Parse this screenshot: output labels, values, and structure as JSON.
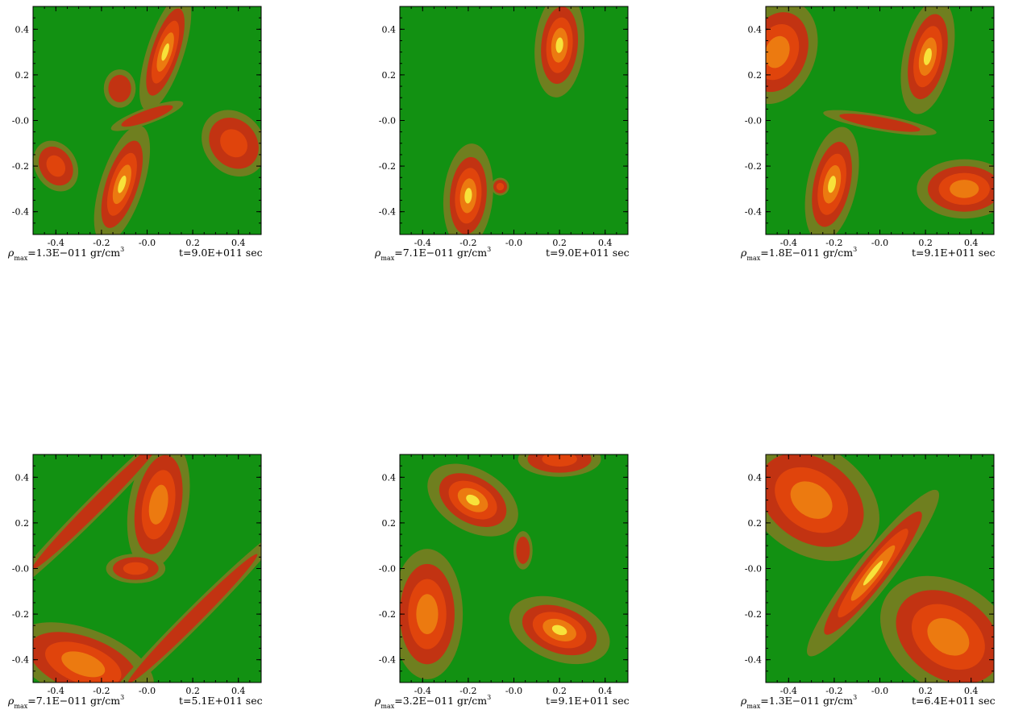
{
  "colors": {
    "background": "#129112",
    "halo": "#6f7f1f",
    "outer": "#c23312",
    "mid": "#e0440c",
    "inner": "#ec7a10",
    "core": "#f7e23a"
  },
  "axes": {
    "x_ticks": [
      "-0.4",
      "-0.2",
      "-0.0",
      "0.2",
      "0.4"
    ],
    "y_ticks": [
      "0.4",
      "0.2",
      "-0.0",
      "-0.2",
      "-0.4"
    ]
  },
  "chart_data": [
    {
      "type": "heatmap",
      "xlim": [
        -0.5,
        0.5
      ],
      "ylim": [
        -0.5,
        0.5
      ],
      "rho_label": "=1.3E−011 gr/cm",
      "time_label": "t=9.0E+011 sec",
      "blobs": [
        {
          "cx": 0.08,
          "cy": 0.3,
          "rx": 0.06,
          "ry": 0.2,
          "rot": 18,
          "level": "core"
        },
        {
          "cx": -0.11,
          "cy": -0.28,
          "rx": 0.07,
          "ry": 0.2,
          "rot": 18,
          "level": "core"
        },
        {
          "cx": -0.12,
          "cy": 0.14,
          "rx": 0.05,
          "ry": 0.06,
          "rot": 0,
          "level": "outer"
        },
        {
          "cx": -0.4,
          "cy": -0.2,
          "rx": 0.07,
          "ry": 0.09,
          "rot": -30,
          "level": "mid"
        },
        {
          "cx": 0.38,
          "cy": -0.1,
          "rx": 0.1,
          "ry": 0.12,
          "rot": -40,
          "level": "mid"
        },
        {
          "cx": 0.0,
          "cy": 0.02,
          "rx": 0.12,
          "ry": 0.025,
          "rot": -20,
          "level": "outer"
        }
      ]
    },
    {
      "type": "heatmap",
      "xlim": [
        -0.5,
        0.5
      ],
      "ylim": [
        -0.5,
        0.5
      ],
      "rho_label": "=7.1E−011 gr/cm",
      "time_label": "t=9.0E+011 sec",
      "blobs": [
        {
          "cx": 0.2,
          "cy": 0.33,
          "rx": 0.08,
          "ry": 0.17,
          "rot": 5,
          "level": "core"
        },
        {
          "cx": -0.2,
          "cy": -0.33,
          "rx": 0.08,
          "ry": 0.17,
          "rot": 5,
          "level": "core"
        },
        {
          "cx": -0.06,
          "cy": -0.29,
          "rx": 0.03,
          "ry": 0.03,
          "rot": 0,
          "level": "mid"
        }
      ]
    },
    {
      "type": "heatmap",
      "xlim": [
        -0.5,
        0.5
      ],
      "ylim": [
        -0.5,
        0.5
      ],
      "rho_label": "=1.8E−011 gr/cm",
      "time_label": "t=9.1E+011 sec",
      "blobs": [
        {
          "cx": 0.21,
          "cy": 0.28,
          "rx": 0.08,
          "ry": 0.19,
          "rot": 12,
          "level": "core"
        },
        {
          "cx": -0.21,
          "cy": -0.28,
          "rx": 0.08,
          "ry": 0.19,
          "rot": 12,
          "level": "core"
        },
        {
          "cx": -0.45,
          "cy": 0.3,
          "rx": 0.13,
          "ry": 0.18,
          "rot": 20,
          "level": "inner"
        },
        {
          "cx": 0.37,
          "cy": -0.3,
          "rx": 0.16,
          "ry": 0.1,
          "rot": 0,
          "level": "inner"
        },
        {
          "cx": 0.0,
          "cy": -0.01,
          "rx": 0.18,
          "ry": 0.025,
          "rot": 10,
          "level": "outer"
        }
      ]
    },
    {
      "type": "heatmap",
      "xlim": [
        -0.5,
        0.5
      ],
      "ylim": [
        -0.5,
        0.5
      ],
      "rho_label": "=7.1E−011 gr/cm",
      "time_label": "t=5.1E+011 sec",
      "blobs": [
        {
          "cx": 0.05,
          "cy": 0.28,
          "rx": 0.1,
          "ry": 0.22,
          "rot": 10,
          "level": "inner"
        },
        {
          "cx": -0.28,
          "cy": -0.42,
          "rx": 0.25,
          "ry": 0.12,
          "rot": 20,
          "level": "inner"
        },
        {
          "cx": -0.05,
          "cy": 0.0,
          "rx": 0.1,
          "ry": 0.05,
          "rot": 0,
          "level": "mid"
        },
        {
          "cx": -0.22,
          "cy": 0.28,
          "rx": 0.4,
          "ry": 0.03,
          "rot": -45,
          "level": "outer"
        },
        {
          "cx": 0.2,
          "cy": -0.22,
          "rx": 0.4,
          "ry": 0.03,
          "rot": -45,
          "level": "outer"
        }
      ]
    },
    {
      "type": "heatmap",
      "xlim": [
        -0.5,
        0.5
      ],
      "ylim": [
        -0.5,
        0.5
      ],
      "rho_label": "=3.2E−011 gr/cm",
      "time_label": "t=9.1E+011 sec",
      "blobs": [
        {
          "cx": -0.18,
          "cy": 0.3,
          "rx": 0.16,
          "ry": 0.1,
          "rot": 30,
          "level": "core"
        },
        {
          "cx": 0.2,
          "cy": -0.27,
          "rx": 0.17,
          "ry": 0.1,
          "rot": 20,
          "level": "core"
        },
        {
          "cx": -0.38,
          "cy": -0.2,
          "rx": 0.12,
          "ry": 0.22,
          "rot": 0,
          "level": "inner"
        },
        {
          "cx": 0.2,
          "cy": 0.48,
          "rx": 0.14,
          "ry": 0.06,
          "rot": 0,
          "level": "mid"
        },
        {
          "cx": 0.04,
          "cy": 0.08,
          "rx": 0.03,
          "ry": 0.06,
          "rot": 0,
          "level": "outer"
        }
      ]
    },
    {
      "type": "heatmap",
      "xlim": [
        -0.5,
        0.5
      ],
      "ylim": [
        -0.5,
        0.5
      ],
      "rho_label": "=1.3E−011 gr/cm",
      "time_label": "t=6.4E+011 sec",
      "blobs": [
        {
          "cx": -0.3,
          "cy": 0.3,
          "rx": 0.25,
          "ry": 0.18,
          "rot": 35,
          "level": "inner"
        },
        {
          "cx": 0.3,
          "cy": -0.3,
          "rx": 0.25,
          "ry": 0.18,
          "rot": 35,
          "level": "inner"
        },
        {
          "cx": -0.03,
          "cy": -0.02,
          "rx": 0.06,
          "ry": 0.34,
          "rot": 38,
          "level": "core"
        }
      ]
    }
  ]
}
